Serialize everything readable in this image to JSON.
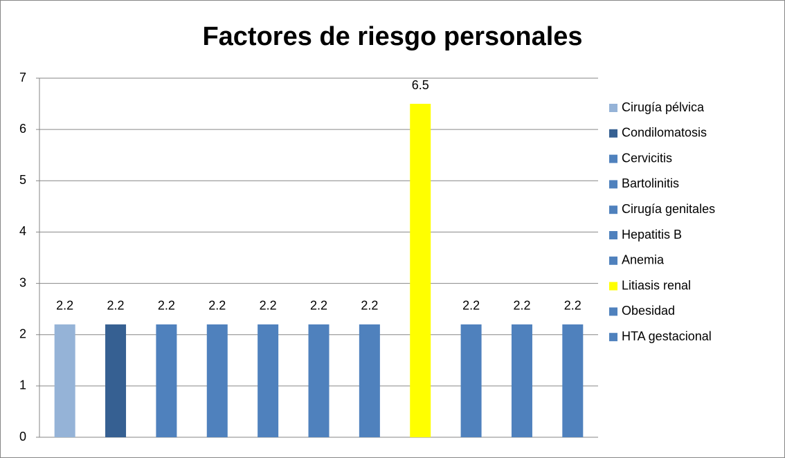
{
  "chart_data": {
    "type": "bar",
    "title": "Factores de riesgo personales",
    "categories": [
      "Cirugía pélvica",
      "Condilomatosis",
      "Cervicitis",
      "Bartolinitis",
      "Cirugía genitales",
      "Hepatitis B",
      "Anemia",
      "Litiasis renal",
      "Obesidad",
      "HTA gestacional",
      null
    ],
    "values": [
      2.2,
      2.2,
      2.2,
      2.2,
      2.2,
      2.2,
      2.2,
      6.5,
      2.2,
      2.2,
      2.2
    ],
    "colors": [
      "#95b3d7",
      "#366092",
      "#4f81bd",
      "#4f81bd",
      "#4f81bd",
      "#4f81bd",
      "#4f81bd",
      "#ffff00",
      "#4f81bd",
      "#4f81bd",
      "#4f81bd"
    ],
    "ylim": [
      0,
      7
    ],
    "yticks": [
      0,
      1,
      2,
      3,
      4,
      5,
      6,
      7
    ],
    "grid": true,
    "legend": "right"
  }
}
